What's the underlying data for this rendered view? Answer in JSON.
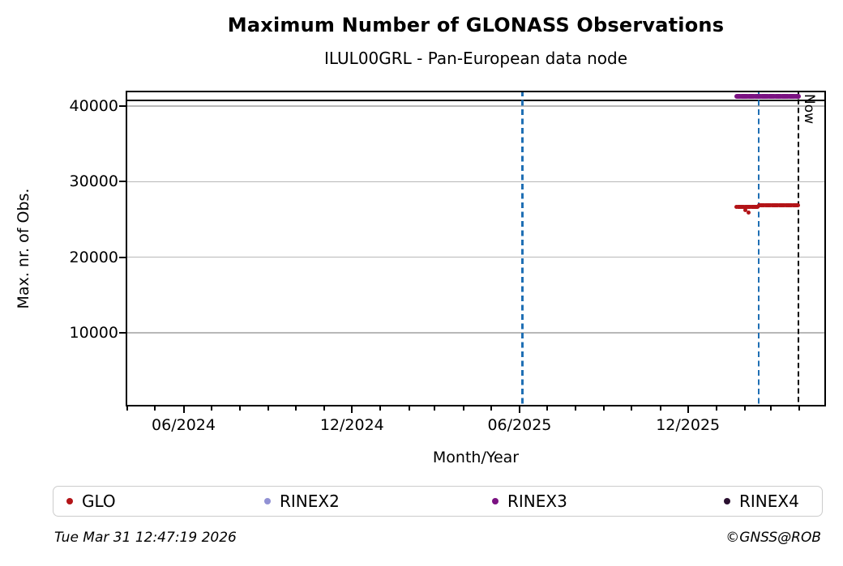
{
  "header": {
    "title": "Maximum Number of GLONASS Observations",
    "subtitle": "ILUL00GRL - Pan-European data node"
  },
  "footer": {
    "timestamp": "Tue Mar 31 12:47:19 2026",
    "credit": "©GNSS@ROB"
  },
  "chart_data": {
    "type": "scatter",
    "title": "Maximum Number of GLONASS Observations",
    "subtitle": "ILUL00GRL - Pan-European data node",
    "xlabel": "Month/Year",
    "ylabel": "Max. nr. of Obs.",
    "xlim": [
      "2024-03-30",
      "2026-04-30"
    ],
    "ylim": [
      250,
      42050
    ],
    "grid": true,
    "grid_color": "#b8b8b8",
    "y_ticks": [
      10000,
      20000,
      30000,
      40000
    ],
    "x_major_ticks": [
      {
        "label": "06/2024",
        "date": "2024-06-01"
      },
      {
        "label": "12/2024",
        "date": "2024-12-01"
      },
      {
        "label": "06/2025",
        "date": "2025-06-01"
      },
      {
        "label": "12/2025",
        "date": "2025-12-01"
      }
    ],
    "x_minor_tick_interval_months": 1,
    "reference_lines": {
      "hline_max": {
        "value": 40750,
        "color": "#000000",
        "style": "solid"
      },
      "vlines": [
        {
          "name": "event-line-1",
          "date": "2025-06-04",
          "color": "#1f6fb4",
          "style": "dashed",
          "label": ""
        },
        {
          "name": "event-line-2",
          "date": "2026-02-16",
          "color": "#1f6fb4",
          "style": "dashed",
          "label": ""
        },
        {
          "name": "now-line",
          "date": "2026-03-31",
          "color": "#000000",
          "style": "dashed",
          "label": "Now"
        }
      ]
    },
    "series": [
      {
        "name": "GLO",
        "color": "#b31418",
        "marker_px": 5,
        "segments": [
          {
            "start": "2026-01-23",
            "end": "2026-02-15",
            "value": 26700
          },
          {
            "start": "2026-02-16",
            "end": "2026-03-31",
            "value": 26900
          }
        ],
        "outliers": [
          {
            "date": "2026-02-01",
            "value": 26200
          },
          {
            "date": "2026-02-05",
            "value": 25900
          }
        ]
      },
      {
        "name": "RINEX2",
        "color": "#9191d4",
        "marker_px": 5,
        "segments": [],
        "outliers": []
      },
      {
        "name": "RINEX3",
        "color": "#7b1282",
        "marker_px": 6,
        "segments": [
          {
            "start": "2026-01-23",
            "end": "2026-03-31",
            "value": 41350
          }
        ],
        "outliers": []
      },
      {
        "name": "RINEX4",
        "color": "#2a1030",
        "marker_px": 5,
        "segments": [],
        "outliers": []
      }
    ],
    "legend": {
      "position": "bottom",
      "entries": [
        "GLO",
        "RINEX2",
        "RINEX3",
        "RINEX4"
      ]
    }
  }
}
